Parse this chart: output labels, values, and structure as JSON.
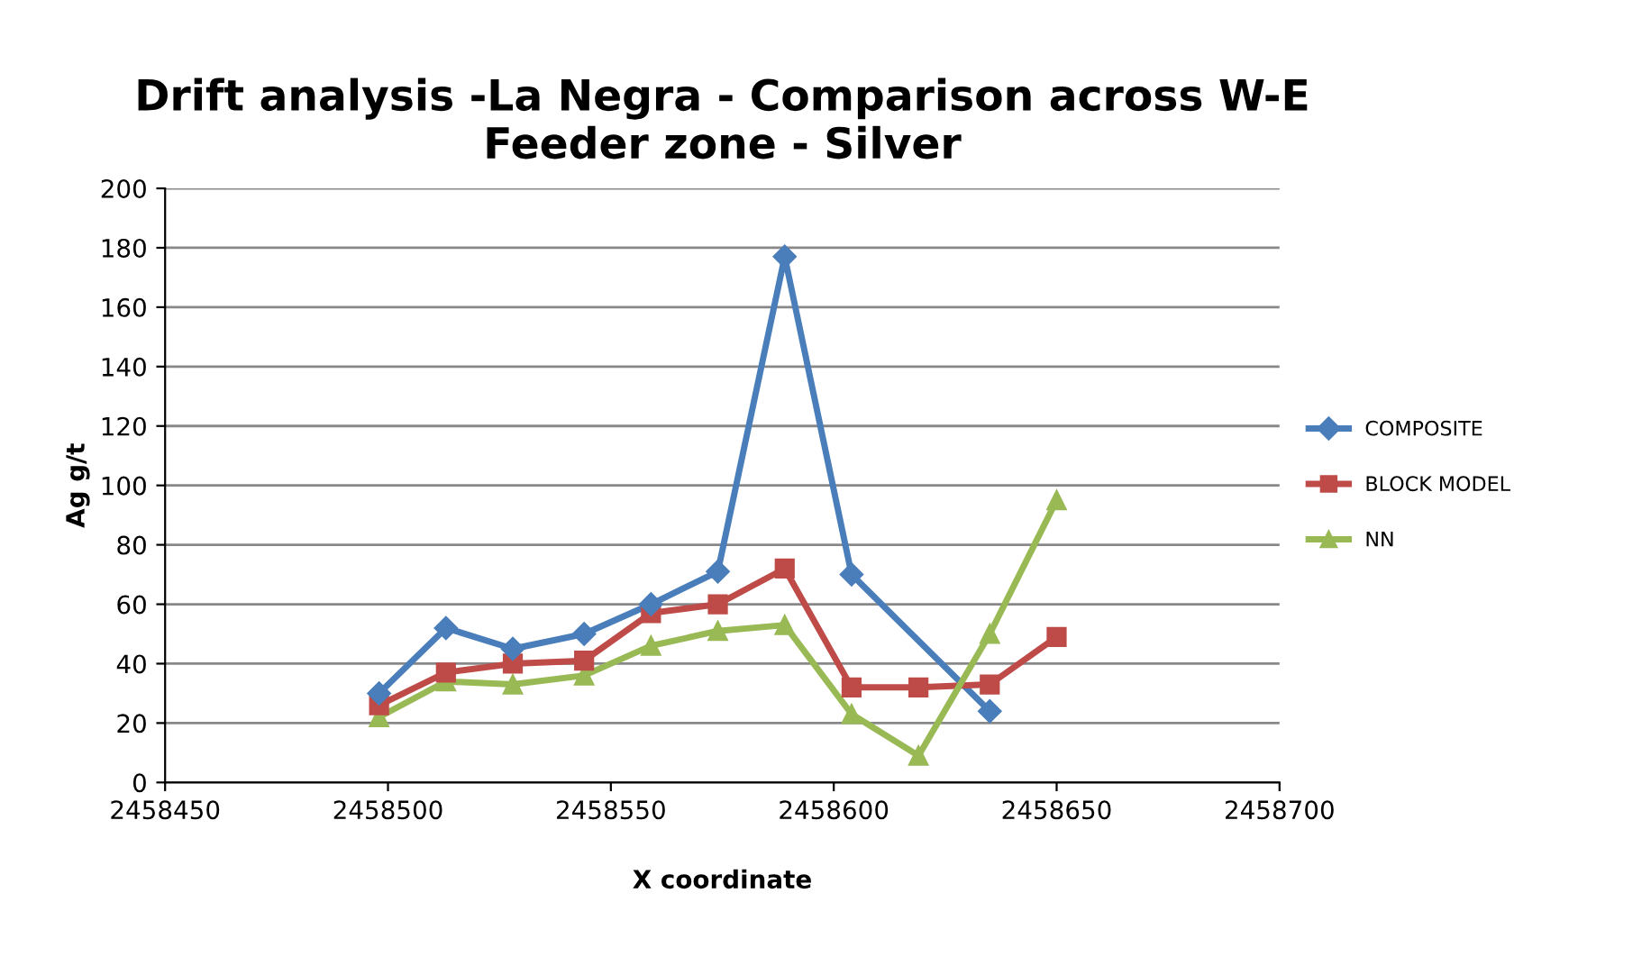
{
  "chart_data": {
    "type": "line",
    "title": "Drift analysis -La Negra - Comparison across W-E\nFeeder zone - Silver",
    "xlabel": "X coordinate",
    "ylabel": "Ag g/t",
    "xlim": [
      2458450,
      2458700
    ],
    "xticks": [
      2458450,
      2458500,
      2458550,
      2458600,
      2458650,
      2458700
    ],
    "ylim": [
      0,
      200
    ],
    "yticks": [
      0,
      20,
      40,
      60,
      80,
      100,
      120,
      140,
      160,
      180,
      200
    ],
    "grid": "y",
    "legend": "right",
    "series": [
      {
        "name": "COMPOSITE",
        "color": "#4a7ebb",
        "marker": "diamond",
        "x": [
          2458498,
          2458513,
          2458528,
          2458544,
          2458559,
          2458574,
          2458589,
          2458604,
          2458635
        ],
        "values": [
          30,
          52,
          45,
          50,
          60,
          71,
          177,
          70,
          24
        ]
      },
      {
        "name": "BLOCK MODEL",
        "color": "#be4b48",
        "marker": "square",
        "x": [
          2458498,
          2458513,
          2458528,
          2458544,
          2458559,
          2458574,
          2458589,
          2458604,
          2458619,
          2458635,
          2458650
        ],
        "values": [
          26,
          37,
          40,
          41,
          57,
          60,
          72,
          32,
          32,
          33,
          49
        ]
      },
      {
        "name": "NN",
        "color": "#98b954",
        "marker": "triangle",
        "x": [
          2458498,
          2458513,
          2458528,
          2458544,
          2458559,
          2458574,
          2458589,
          2458604,
          2458619,
          2458635,
          2458650
        ],
        "values": [
          22,
          34,
          33,
          36,
          46,
          51,
          53,
          23,
          9,
          50,
          95
        ]
      }
    ]
  }
}
